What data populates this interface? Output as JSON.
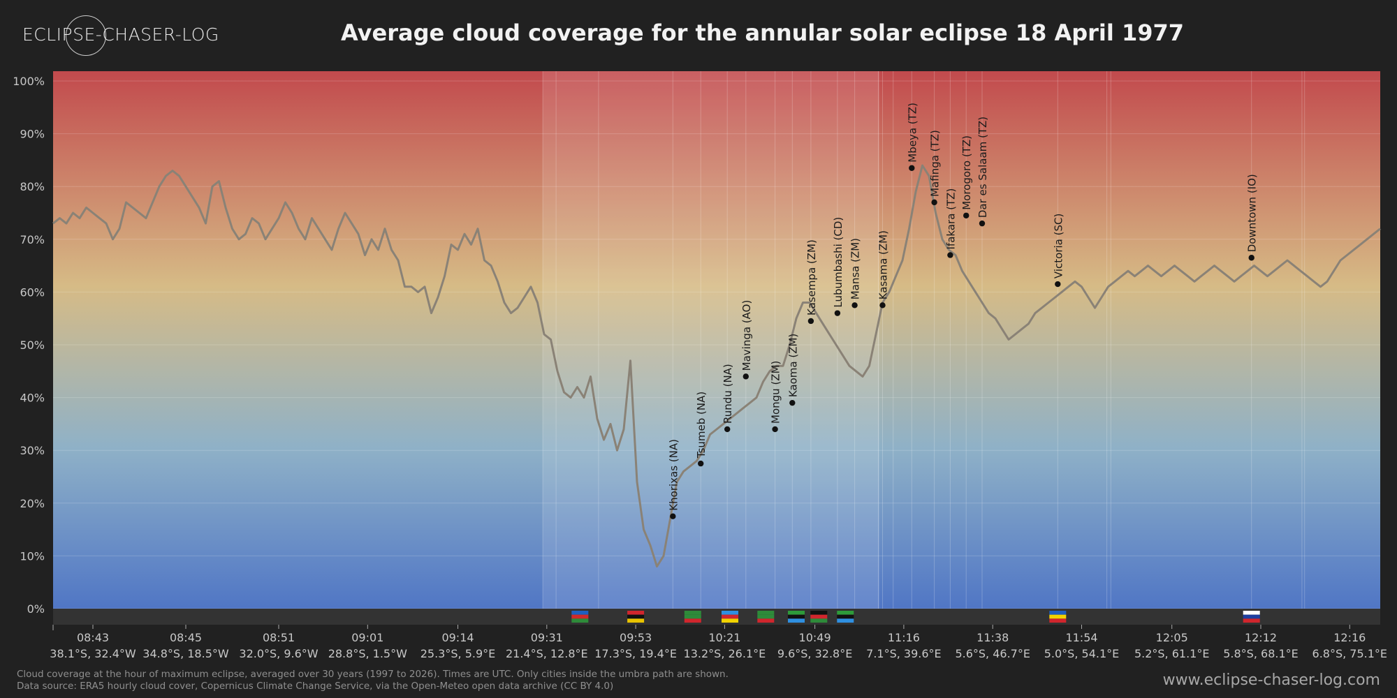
{
  "header": {
    "logo_text": "ECLIPSE-CHASER-LOG",
    "title": "Average cloud coverage for the annular solar eclipse 18 April 1977"
  },
  "footer": {
    "note_line1": "Cloud coverage at the hour of maximum eclipse, averaged over 30 years (1997 to 2026). Times are UTC. Only cities inside the umbra path are shown.",
    "note_line2": "Data source: ERA5 hourly cloud cover, Copernicus Climate Change Service, via the Open-Meteo open data archive (CC BY 4.0)",
    "site": "www.eclipse-chaser-log.com"
  },
  "chart_data": {
    "type": "line",
    "title": "Average cloud coverage for the annular solar eclipse 18 April 1977",
    "xlabel": "",
    "ylabel": "",
    "ylim": [
      0,
      100
    ],
    "y_ticks": [
      "0%",
      "10%",
      "20%",
      "30%",
      "40%",
      "50%",
      "60%",
      "70%",
      "80%",
      "90%",
      "100%"
    ],
    "x_index_range": [
      0,
      100
    ],
    "x_ticks": [
      {
        "at": 3,
        "time": "08:43",
        "coord": "38.1°S, 32.4°W"
      },
      {
        "at": 10,
        "time": "08:45",
        "coord": "34.8°S, 18.5°W"
      },
      {
        "at": 17,
        "time": "08:51",
        "coord": "32.0°S, 9.6°W"
      },
      {
        "at": 23.7,
        "time": "09:01",
        "coord": "28.8°S, 1.5°W"
      },
      {
        "at": 30.5,
        "time": "09:14",
        "coord": "25.3°S, 5.9°E"
      },
      {
        "at": 37.2,
        "time": "09:31",
        "coord": "21.4°S, 12.8°E"
      },
      {
        "at": 43.9,
        "time": "09:53",
        "coord": "17.3°S, 19.4°E"
      },
      {
        "at": 50.6,
        "time": "10:21",
        "coord": "13.2°S, 26.1°E"
      },
      {
        "at": 57.4,
        "time": "10:49",
        "coord": "9.6°S, 32.8°E"
      },
      {
        "at": 64.1,
        "time": "11:16",
        "coord": "7.1°S, 39.6°E"
      },
      {
        "at": 70.8,
        "time": "11:38",
        "coord": "5.6°S, 46.7°E"
      },
      {
        "at": 77.5,
        "time": "11:54",
        "coord": "5.0°S, 54.1°E"
      },
      {
        "at": 84.3,
        "time": "12:05",
        "coord": "5.2°S, 61.1°E"
      },
      {
        "at": 91,
        "time": "12:12",
        "coord": "5.8°S, 68.1°E"
      },
      {
        "at": 97.7,
        "time": "12:16",
        "coord": "6.8°S, 75.1°E"
      }
    ],
    "series": [
      {
        "line_color": "#8a8276",
        "points": [
          [
            0,
            73
          ],
          [
            0.5,
            74
          ],
          [
            1,
            73
          ],
          [
            1.5,
            75
          ],
          [
            2,
            74
          ],
          [
            2.5,
            76
          ],
          [
            3,
            75
          ],
          [
            3.5,
            74
          ],
          [
            4,
            73
          ],
          [
            4.5,
            70
          ],
          [
            5,
            72
          ],
          [
            5.5,
            77
          ],
          [
            6,
            76
          ],
          [
            6.5,
            75
          ],
          [
            7,
            74
          ],
          [
            7.5,
            77
          ],
          [
            8,
            80
          ],
          [
            8.5,
            82
          ],
          [
            9,
            83
          ],
          [
            9.5,
            82
          ],
          [
            10,
            80
          ],
          [
            10.5,
            78
          ],
          [
            11,
            76
          ],
          [
            11.5,
            73
          ],
          [
            12,
            80
          ],
          [
            12.5,
            81
          ],
          [
            13,
            76
          ],
          [
            13.5,
            72
          ],
          [
            14,
            70
          ],
          [
            14.5,
            71
          ],
          [
            15,
            74
          ],
          [
            15.5,
            73
          ],
          [
            16,
            70
          ],
          [
            16.5,
            72
          ],
          [
            17,
            74
          ],
          [
            17.5,
            77
          ],
          [
            18,
            75
          ],
          [
            18.5,
            72
          ],
          [
            19,
            70
          ],
          [
            19.5,
            74
          ],
          [
            20,
            72
          ],
          [
            20.5,
            70
          ],
          [
            21,
            68
          ],
          [
            21.5,
            72
          ],
          [
            22,
            75
          ],
          [
            22.5,
            73
          ],
          [
            23,
            71
          ],
          [
            23.5,
            67
          ],
          [
            24,
            70
          ],
          [
            24.5,
            68
          ],
          [
            25,
            72
          ],
          [
            25.5,
            68
          ],
          [
            26,
            66
          ],
          [
            26.5,
            61
          ],
          [
            27,
            61
          ],
          [
            27.5,
            60
          ],
          [
            28,
            61
          ],
          [
            28.5,
            56
          ],
          [
            29,
            59
          ],
          [
            29.5,
            63
          ],
          [
            30,
            69
          ],
          [
            30.5,
            68
          ],
          [
            31,
            71
          ],
          [
            31.5,
            69
          ],
          [
            32,
            72
          ],
          [
            32.5,
            66
          ],
          [
            33,
            65
          ],
          [
            33.5,
            62
          ],
          [
            34,
            58
          ],
          [
            34.5,
            56
          ],
          [
            35,
            57
          ],
          [
            35.5,
            59
          ],
          [
            36,
            61
          ],
          [
            36.5,
            58
          ],
          [
            37,
            52
          ],
          [
            37.5,
            51
          ],
          [
            38,
            45
          ],
          [
            38.5,
            41
          ],
          [
            39,
            40
          ],
          [
            39.5,
            42
          ],
          [
            40,
            40
          ],
          [
            40.5,
            44
          ],
          [
            41,
            36
          ],
          [
            41.5,
            32
          ],
          [
            42,
            35
          ],
          [
            42.5,
            30
          ],
          [
            43,
            34
          ],
          [
            43.5,
            47
          ],
          [
            44,
            24
          ],
          [
            44.5,
            15
          ],
          [
            45,
            12
          ],
          [
            45.5,
            8
          ],
          [
            46,
            10
          ],
          [
            46.5,
            17
          ],
          [
            47,
            24
          ],
          [
            47.5,
            26
          ],
          [
            48,
            27
          ],
          [
            48.5,
            28
          ],
          [
            49,
            30
          ],
          [
            49.5,
            33
          ],
          [
            50,
            34
          ],
          [
            50.5,
            35
          ],
          [
            51,
            36
          ],
          [
            51.5,
            37
          ],
          [
            52,
            38
          ],
          [
            52.5,
            39
          ],
          [
            53,
            40
          ],
          [
            53.5,
            43
          ],
          [
            54,
            45
          ],
          [
            54.5,
            46
          ],
          [
            55,
            46
          ],
          [
            55.5,
            50
          ],
          [
            56,
            55
          ],
          [
            56.5,
            58
          ],
          [
            57,
            58
          ],
          [
            57.5,
            56
          ],
          [
            58,
            54
          ],
          [
            58.5,
            52
          ],
          [
            59,
            50
          ],
          [
            59.5,
            48
          ],
          [
            60,
            46
          ],
          [
            60.5,
            45
          ],
          [
            61,
            44
          ],
          [
            61.5,
            46
          ],
          [
            62,
            52
          ],
          [
            62.5,
            58
          ],
          [
            63,
            60
          ],
          [
            63.5,
            63
          ],
          [
            64,
            66
          ],
          [
            64.5,
            72
          ],
          [
            65,
            79
          ],
          [
            65.5,
            84
          ],
          [
            66,
            82
          ],
          [
            66.5,
            75
          ],
          [
            67,
            70
          ],
          [
            67.5,
            68
          ],
          [
            68,
            67
          ],
          [
            68.5,
            64
          ],
          [
            69,
            62
          ],
          [
            69.5,
            60
          ],
          [
            70,
            58
          ],
          [
            70.5,
            56
          ],
          [
            71,
            55
          ],
          [
            71.5,
            53
          ],
          [
            72,
            51
          ],
          [
            72.5,
            52
          ],
          [
            73,
            53
          ],
          [
            73.5,
            54
          ],
          [
            74,
            56
          ],
          [
            74.5,
            57
          ],
          [
            75,
            58
          ],
          [
            75.5,
            59
          ],
          [
            76,
            60
          ],
          [
            76.5,
            61
          ],
          [
            77,
            62
          ],
          [
            77.5,
            61
          ],
          [
            78,
            59
          ],
          [
            78.5,
            57
          ],
          [
            79,
            59
          ],
          [
            79.5,
            61
          ],
          [
            80,
            62
          ],
          [
            80.5,
            63
          ],
          [
            81,
            64
          ],
          [
            81.5,
            63
          ],
          [
            82,
            64
          ],
          [
            82.5,
            65
          ],
          [
            83,
            64
          ],
          [
            83.5,
            63
          ],
          [
            84,
            64
          ],
          [
            84.5,
            65
          ],
          [
            85,
            64
          ],
          [
            85.5,
            63
          ],
          [
            86,
            62
          ],
          [
            86.5,
            63
          ],
          [
            87,
            64
          ],
          [
            87.5,
            65
          ],
          [
            88,
            64
          ],
          [
            88.5,
            63
          ],
          [
            89,
            62
          ],
          [
            89.5,
            63
          ],
          [
            90,
            64
          ],
          [
            90.5,
            65
          ],
          [
            91,
            64
          ],
          [
            91.5,
            63
          ],
          [
            92,
            64
          ],
          [
            92.5,
            65
          ],
          [
            93,
            66
          ],
          [
            93.5,
            65
          ],
          [
            94,
            64
          ],
          [
            94.5,
            63
          ],
          [
            95,
            62
          ],
          [
            95.5,
            61
          ],
          [
            96,
            62
          ],
          [
            96.5,
            64
          ],
          [
            97,
            66
          ],
          [
            97.5,
            67
          ],
          [
            98,
            68
          ],
          [
            98.5,
            69
          ],
          [
            99,
            70
          ],
          [
            99.5,
            71
          ],
          [
            100,
            72
          ]
        ]
      }
    ],
    "cities": [
      {
        "name": "Khorixas (NA)",
        "x": 46.7,
        "y": 17.5
      },
      {
        "name": "Tsumeb (NA)",
        "x": 48.8,
        "y": 27.5
      },
      {
        "name": "Rundu (NA)",
        "x": 50.8,
        "y": 34
      },
      {
        "name": "Mavinga (AO)",
        "x": 52.2,
        "y": 44
      },
      {
        "name": "Mongu (ZM)",
        "x": 54.4,
        "y": 34
      },
      {
        "name": "Kaoma (ZM)",
        "x": 55.7,
        "y": 39
      },
      {
        "name": "Kasempa (ZM)",
        "x": 57.1,
        "y": 54.5
      },
      {
        "name": "Lubumbashi (CD)",
        "x": 59.1,
        "y": 56
      },
      {
        "name": "Mansa (ZM)",
        "x": 60.4,
        "y": 57.5
      },
      {
        "name": "Kasama (ZM)",
        "x": 62.5,
        "y": 57.5
      },
      {
        "name": "Mbeya (TZ)",
        "x": 64.7,
        "y": 83.5
      },
      {
        "name": "Mafinga (TZ)",
        "x": 66.4,
        "y": 77
      },
      {
        "name": "Ifakara (TZ)",
        "x": 67.6,
        "y": 67
      },
      {
        "name": "Morogoro (TZ)",
        "x": 68.8,
        "y": 74.5
      },
      {
        "name": "Dar es Salaam (TZ)",
        "x": 70,
        "y": 73
      },
      {
        "name": "Victoria (SC)",
        "x": 75.7,
        "y": 61.5
      },
      {
        "name": "Downtown (IO)",
        "x": 90.3,
        "y": 66.5
      }
    ],
    "umbra_band": [
      36.9,
      62.2
    ],
    "country_bands": [
      37.9,
      41.1,
      62.2,
      63.3,
      79.4,
      79.7,
      94.1,
      94.3
    ],
    "flags": [
      {
        "country": "NA",
        "x": 39.7
      },
      {
        "country": "AO",
        "x": 43.9
      },
      {
        "country": "ZM",
        "x": 48.2
      },
      {
        "country": "CD",
        "x": 51.0
      },
      {
        "country": "ZM",
        "x": 53.7
      },
      {
        "country": "TZ",
        "x": 56.0
      },
      {
        "country": "MW",
        "x": 57.7
      },
      {
        "country": "TZ",
        "x": 59.7
      },
      {
        "country": "SC",
        "x": 75.7
      },
      {
        "country": "IO",
        "x": 90.3
      }
    ],
    "background_gradient": {
      "top": "#c24a4d",
      "middle": "#d6bb86",
      "lower": "#8fb1c7",
      "bottom": "#5076c5"
    },
    "grid": true
  }
}
